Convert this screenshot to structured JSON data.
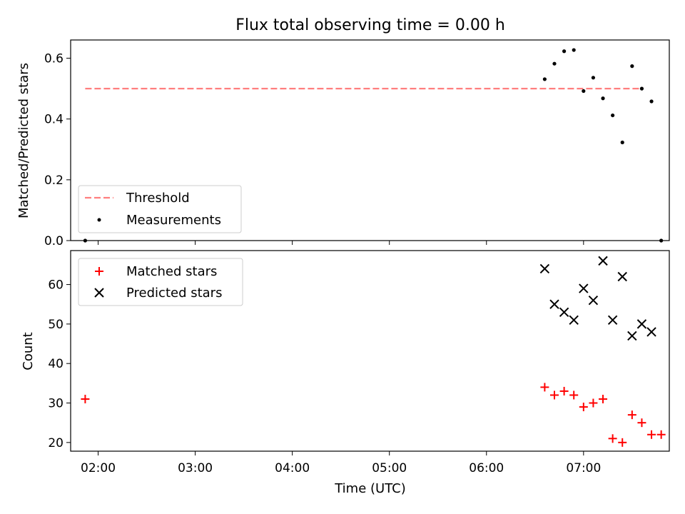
{
  "chart_data": [
    {
      "type": "scatter",
      "title": "Flux total observing time = 0.00 h",
      "xlabel": "",
      "ylabel": "Matched/Predicted stars",
      "ylim": [
        0,
        0.66
      ],
      "yticks": [
        0.0,
        0.2,
        0.4,
        0.6
      ],
      "ytick_labels": [
        "0.0",
        "0.2",
        "0.4",
        "0.6"
      ],
      "xlim": [
        "01:43",
        "07:53"
      ],
      "xticks": [
        "02:00",
        "03:00",
        "04:00",
        "05:00",
        "06:00",
        "07:00"
      ],
      "legend_position": "lower-left",
      "grid": false,
      "series": [
        {
          "name": "Threshold",
          "kind": "dashed-line",
          "color": "#ff7f7f",
          "x": [
            "01:52",
            "07:35"
          ],
          "y": [
            0.5,
            0.5
          ]
        },
        {
          "name": "Measurements",
          "kind": "dots",
          "color": "#000000",
          "x": [
            "01:52",
            "06:36",
            "06:42",
            "06:48",
            "06:54",
            "07:00",
            "07:06",
            "07:12",
            "07:18",
            "07:24",
            "07:30",
            "07:36",
            "07:42",
            "07:48"
          ],
          "y": [
            0.0,
            0.531,
            0.582,
            0.623,
            0.627,
            0.492,
            0.536,
            0.468,
            0.412,
            0.323,
            0.574,
            0.5,
            0.458,
            0.0
          ]
        }
      ]
    },
    {
      "type": "scatter",
      "title": "",
      "xlabel": "Time (UTC)",
      "ylabel": "Count",
      "ylim": [
        17.8,
        68.6
      ],
      "yticks": [
        20,
        30,
        40,
        50,
        60
      ],
      "ytick_labels": [
        "20",
        "30",
        "40",
        "50",
        "60"
      ],
      "xlim": [
        "01:43",
        "07:53"
      ],
      "xticks": [
        "02:00",
        "03:00",
        "04:00",
        "05:00",
        "06:00",
        "07:00"
      ],
      "xtick_labels": [
        "02:00",
        "03:00",
        "04:00",
        "05:00",
        "06:00",
        "07:00"
      ],
      "legend_position": "upper-left",
      "grid": false,
      "series": [
        {
          "name": "Matched stars",
          "marker": "plus",
          "color": "#ff0000",
          "x": [
            "01:52",
            "06:36",
            "06:42",
            "06:48",
            "06:54",
            "07:00",
            "07:06",
            "07:12",
            "07:18",
            "07:24",
            "07:30",
            "07:36",
            "07:42",
            "07:48"
          ],
          "y": [
            31,
            34,
            32,
            33,
            32,
            29,
            30,
            31,
            21,
            20,
            27,
            25,
            22,
            22
          ]
        },
        {
          "name": "Predicted stars",
          "marker": "x",
          "color": "#000000",
          "x": [
            "06:36",
            "06:42",
            "06:48",
            "06:54",
            "07:00",
            "07:06",
            "07:12",
            "07:18",
            "07:24",
            "07:30",
            "07:36",
            "07:42"
          ],
          "y": [
            64,
            55,
            53,
            51,
            59,
            56,
            66,
            51,
            62,
            47,
            50,
            48
          ]
        }
      ]
    }
  ]
}
